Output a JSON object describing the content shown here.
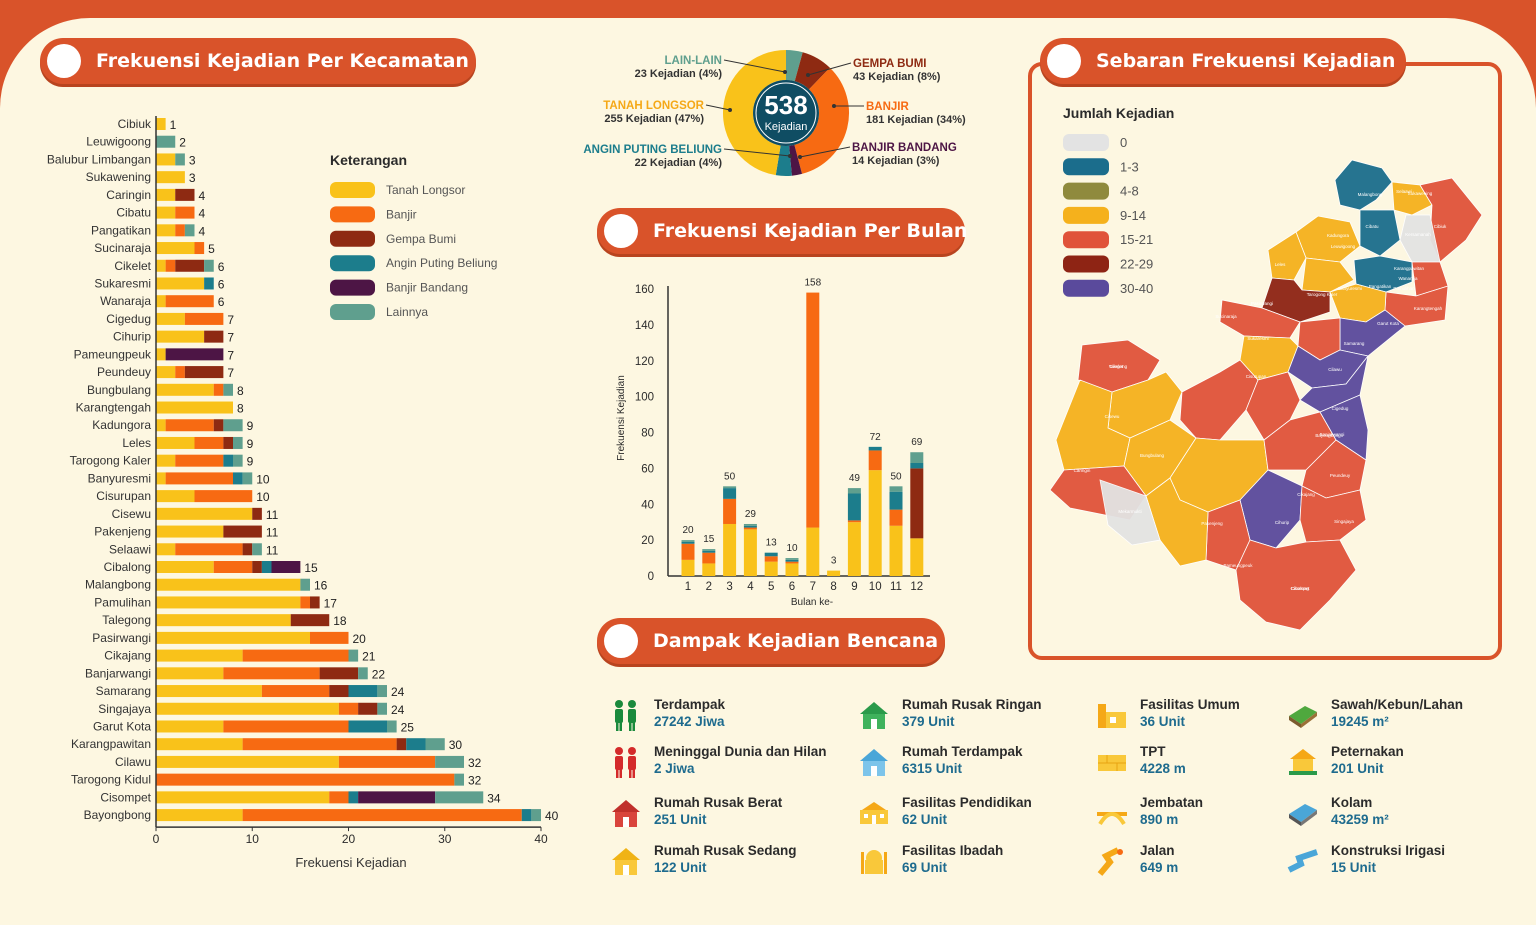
{
  "titles": {
    "kecamatan": "Frekuensi Kejadian Per Kecamatan",
    "bulan": "Frekuensi Kejadian Per Bulan",
    "dampak": "Dampak Kejadian Bencana",
    "sebaran": "Sebaran Frekuensi Kejadian"
  },
  "colors": {
    "Tanah Longsor": "#f9c21a",
    "Banjir": "#f76a12",
    "Gempa Bumi": "#8e2a12",
    "Angin Puting Beliung": "#1c7d8c",
    "Banjir Bandang": "#4d1545",
    "Lainnya": "#5f9f8e"
  },
  "legend": {
    "title": "Keterangan",
    "items": [
      "Tanah Longsor",
      "Banjir",
      "Gempa Bumi",
      "Angin Puting Beliung",
      "Banjir Bandang",
      "Lainnya"
    ]
  },
  "donut": {
    "total": "538",
    "unit": "Kejadian",
    "labels": [
      {
        "name": "LAIN-LAIN",
        "value": "23 Kejadian (4%)",
        "color": "#5f9f8e"
      },
      {
        "name": "TANAH LONGSOR",
        "value": "255 Kejadian (47%)",
        "color": "#f5a817"
      },
      {
        "name": "ANGIN PUTING BELIUNG",
        "value": "22 Kejadian (4%)",
        "color": "#1c7d8c"
      },
      {
        "name": "GEMPA BUMI",
        "value": "43 Kejadian (8%)",
        "color": "#8e2a12"
      },
      {
        "name": "BANJIR",
        "value": "181 Kejadian (34%)",
        "color": "#f76a12"
      },
      {
        "name": "BANJIR BANDANG",
        "value": "14 Kejadian (3%)",
        "color": "#4d1545"
      }
    ]
  },
  "chart_data": [
    {
      "type": "bar",
      "orientation": "horizontal",
      "stacked": true,
      "xlabel": "Frekuensi Kejadian",
      "xlim": [
        0,
        40
      ],
      "xticks": [
        0,
        10,
        20,
        30,
        40
      ],
      "categories": [
        "Cibiuk",
        "Leuwigoong",
        "Balubur Limbangan",
        "Sukawening",
        "Caringin",
        "Cibatu",
        "Pangatikan",
        "Sucinaraja",
        "Cikelet",
        "Sukaresmi",
        "Wanaraja",
        "Cigedug",
        "Cihurip",
        "Pameungpeuk",
        "Peundeuy",
        "Bungbulang",
        "Karangtengah",
        "Kadungora",
        "Leles",
        "Tarogong Kaler",
        "Banyuresmi",
        "Cisurupan",
        "Cisewu",
        "Pakenjeng",
        "Selaawi",
        "Cibalong",
        "Malangbong",
        "Pamulihan",
        "Talegong",
        "Pasirwangi",
        "Cikajang",
        "Banjarwangi",
        "Samarang",
        "Singajaya",
        "Garut Kota",
        "Karangpawitan",
        "Cilawu",
        "Tarogong Kidul",
        "Cisompet",
        "Bayongbong"
      ],
      "totals": [
        1,
        2,
        3,
        3,
        4,
        4,
        4,
        5,
        6,
        6,
        6,
        7,
        7,
        7,
        7,
        8,
        8,
        9,
        9,
        9,
        10,
        10,
        11,
        11,
        11,
        15,
        16,
        17,
        18,
        20,
        21,
        22,
        24,
        24,
        25,
        30,
        32,
        32,
        34,
        40
      ],
      "series": [
        {
          "name": "Tanah Longsor",
          "values": [
            1,
            0,
            2,
            3,
            2,
            2,
            2,
            4,
            1,
            5,
            1,
            3,
            5,
            1,
            2,
            6,
            8,
            1,
            4,
            2,
            1,
            4,
            10,
            7,
            2,
            6,
            15,
            15,
            14,
            16,
            9,
            7,
            11,
            19,
            7,
            9,
            19,
            0,
            18,
            9
          ]
        },
        {
          "name": "Banjir",
          "values": [
            0,
            0,
            0,
            0,
            0,
            2,
            1,
            1,
            1,
            0,
            5,
            4,
            0,
            0,
            1,
            1,
            0,
            5,
            3,
            5,
            7,
            6,
            0,
            0,
            7,
            4,
            0,
            1,
            0,
            4,
            11,
            10,
            7,
            2,
            13,
            16,
            10,
            31,
            2,
            29
          ]
        },
        {
          "name": "Gempa Bumi",
          "values": [
            0,
            0,
            0,
            0,
            2,
            0,
            0,
            0,
            3,
            0,
            0,
            0,
            2,
            0,
            4,
            0,
            0,
            1,
            1,
            0,
            0,
            0,
            1,
            4,
            1,
            1,
            0,
            1,
            4,
            0,
            0,
            4,
            2,
            2,
            0,
            1,
            0,
            0,
            0,
            0
          ]
        },
        {
          "name": "Angin Puting Beliung",
          "values": [
            0,
            0,
            0,
            0,
            0,
            0,
            0,
            0,
            0,
            1,
            0,
            0,
            0,
            0,
            0,
            0,
            0,
            0,
            0,
            1,
            1,
            0,
            0,
            0,
            0,
            1,
            0,
            0,
            0,
            0,
            0,
            0,
            3,
            0,
            4,
            2,
            0,
            0,
            1,
            1
          ]
        },
        {
          "name": "Banjir Bandang",
          "values": [
            0,
            0,
            0,
            0,
            0,
            0,
            0,
            0,
            0,
            0,
            0,
            0,
            0,
            6,
            0,
            0,
            0,
            0,
            0,
            0,
            0,
            0,
            0,
            0,
            0,
            3,
            0,
            0,
            0,
            0,
            0,
            0,
            0,
            0,
            0,
            0,
            0,
            0,
            8,
            0
          ]
        },
        {
          "name": "Lainnya",
          "values": [
            0,
            2,
            1,
            0,
            0,
            0,
            1,
            0,
            1,
            0,
            0,
            0,
            0,
            0,
            0,
            1,
            0,
            2,
            1,
            1,
            1,
            0,
            0,
            0,
            1,
            0,
            1,
            0,
            0,
            0,
            1,
            1,
            1,
            1,
            1,
            2,
            3,
            1,
            5,
            1
          ]
        }
      ]
    },
    {
      "type": "bar",
      "stacked": true,
      "xlabel": "Bulan ke-",
      "ylabel": "Frekuensi Kejadian",
      "ylim": [
        0,
        160
      ],
      "yticks": [
        0,
        20,
        40,
        60,
        80,
        100,
        120,
        140,
        160
      ],
      "categories": [
        "1",
        "2",
        "3",
        "4",
        "5",
        "6",
        "7",
        "8",
        "9",
        "10",
        "11",
        "12"
      ],
      "totals": [
        20,
        15,
        50,
        29,
        13,
        10,
        158,
        3,
        49,
        72,
        50,
        69
      ],
      "series": [
        {
          "name": "Tanah Longsor",
          "values": [
            9,
            7,
            29,
            26,
            8,
            7,
            27,
            3,
            30,
            59,
            28,
            21
          ]
        },
        {
          "name": "Banjir",
          "values": [
            9,
            6,
            14,
            1,
            3,
            1,
            131,
            0,
            1,
            11,
            9,
            0
          ]
        },
        {
          "name": "Gempa Bumi",
          "values": [
            0,
            0,
            0,
            0,
            0,
            0,
            0,
            0,
            0,
            0,
            0,
            39
          ]
        },
        {
          "name": "Angin Puting Beliung",
          "values": [
            1,
            1,
            6,
            1,
            2,
            1,
            0,
            0,
            15,
            2,
            10,
            3
          ]
        },
        {
          "name": "Banjir Bandang",
          "values": [
            0,
            0,
            0,
            0,
            0,
            0,
            0,
            0,
            0,
            0,
            0,
            0
          ]
        },
        {
          "name": "Lainnya",
          "values": [
            1,
            1,
            1,
            1,
            0,
            1,
            0,
            0,
            3,
            0,
            3,
            6
          ]
        }
      ]
    },
    {
      "type": "pie",
      "donut": true,
      "title": "538 Kejadian",
      "categories": [
        "Tanah Longsor",
        "Banjir",
        "Gempa Bumi",
        "Angin Puting Beliung",
        "Banjir Bandang",
        "Lain-lain"
      ],
      "values": [
        255,
        181,
        43,
        22,
        14,
        23
      ],
      "percent": [
        47,
        34,
        8,
        4,
        3,
        4
      ]
    }
  ],
  "impacts": [
    {
      "name": "Terdampak",
      "value": "27242 Jiwa",
      "icon": "people-icon"
    },
    {
      "name": "Meninggal Dunia dan Hilan",
      "value": "2 Jiwa",
      "icon": "people-deceased-icon"
    },
    {
      "name": "Rumah Rusak Berat",
      "value": "251 Unit",
      "icon": "house-red-icon"
    },
    {
      "name": "Rumah Rusak Sedang",
      "value": "122 Unit",
      "icon": "house-yellow-icon"
    },
    {
      "name": "Rumah Rusak Ringan",
      "value": "379 Unit",
      "icon": "house-green-icon"
    },
    {
      "name": "Rumah Terdampak",
      "value": "6315 Unit",
      "icon": "house-blue-icon"
    },
    {
      "name": "Fasilitas Pendidikan",
      "value": "62 Unit",
      "icon": "school-icon"
    },
    {
      "name": "Fasilitas Ibadah",
      "value": "69 Unit",
      "icon": "mosque-icon"
    },
    {
      "name": "Fasilitas Umum",
      "value": "36 Unit",
      "icon": "public-facility-icon"
    },
    {
      "name": "TPT",
      "value": "4228 m",
      "icon": "wall-icon"
    },
    {
      "name": "Jembatan",
      "value": "890 m",
      "icon": "bridge-icon"
    },
    {
      "name": "Jalan",
      "value": "649 m",
      "icon": "road-icon"
    },
    {
      "name": "Sawah/Kebun/Lahan",
      "value": "19245 m²",
      "icon": "field-icon"
    },
    {
      "name": "Peternakan",
      "value": "201 Unit",
      "icon": "farm-icon"
    },
    {
      "name": "Kolam",
      "value": "43259 m²",
      "icon": "pond-icon"
    },
    {
      "name": "Konstruksi Irigasi",
      "value": "15 Unit",
      "icon": "irrigation-icon"
    }
  ],
  "map": {
    "legend_title": "Jumlah Kejadian",
    "classes": [
      {
        "label": "0",
        "color": "#e3e3e3"
      },
      {
        "label": "1-3",
        "color": "#1b6d8c"
      },
      {
        "label": "4-8",
        "color": "#8f8a3d"
      },
      {
        "label": "9-14",
        "color": "#f5b11c"
      },
      {
        "label": "15-21",
        "color": "#e0533a"
      },
      {
        "label": "22-29",
        "color": "#8e2414"
      },
      {
        "label": "30-40",
        "color": "#5a4a9c"
      }
    ],
    "region_labels": [
      "Malangbong",
      "Selaawi",
      "Cibiuk",
      "Kadungora",
      "Leuwigoong",
      "Cikelet",
      "Banyuresmi",
      "Bungbulang",
      "Pakenjeng",
      "Cikajang",
      "Cisurupan",
      "Cisompet",
      "Garut Kota",
      "Sukaresmi",
      "Karangpawitan",
      "Tarogong Kaler",
      "Cilawu",
      "Samarang",
      "Bayongbong",
      "Singajaya",
      "Pamulihan",
      "Talegong",
      "Cisewu",
      "Peundeuy",
      "Cibalong",
      "Pameungpeuk",
      "Caringin",
      "Mekarmukti",
      "Cihurip",
      "Banjarwangi",
      "Pasirwangi",
      "Sucinaraja",
      "Leles",
      "Wanaraja",
      "Pangatikan",
      "Cigedug",
      "Sukawening",
      "Karangtengah",
      "Cibatu",
      "Kersamanah"
    ]
  }
}
